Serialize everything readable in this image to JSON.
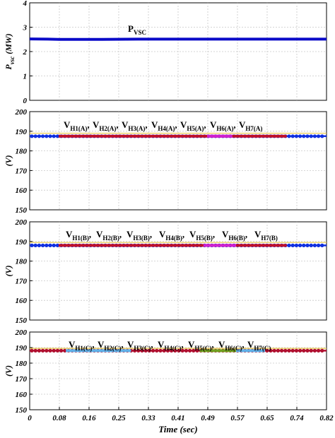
{
  "chart_data": [
    {
      "type": "line",
      "ylabel_main": "P",
      "ylabel_sub": "vsc",
      "ylabel_unit": "(MW)",
      "ylim": [
        0,
        4
      ],
      "yticks": [
        "0",
        "1",
        "2",
        "3",
        "4"
      ],
      "xlim": [
        0,
        0.82
      ],
      "grid": true,
      "annotation": {
        "main": "P",
        "sub": "VSC"
      },
      "series": [
        {
          "color": "#0a0ac8",
          "x": [
            0,
            0.05,
            0.08,
            0.2,
            0.3,
            0.5,
            0.7,
            0.82
          ],
          "y": [
            2.52,
            2.51,
            2.5,
            2.5,
            2.51,
            2.51,
            2.51,
            2.51
          ]
        }
      ]
    },
    {
      "type": "line",
      "ylabel_unit": "(V)",
      "ylim": [
        150,
        200
      ],
      "yticks": [
        "150",
        "160",
        "170",
        "180",
        "190",
        "200"
      ],
      "xlim": [
        0,
        0.82
      ],
      "grid": true,
      "annotation": [
        {
          "main": "V",
          "sub": "H1(A)",
          "sep": ","
        },
        {
          "main": "V",
          "sub": "H2(A)",
          "sep": ","
        },
        {
          "main": "V",
          "sub": "H3(A)",
          "sep": ","
        },
        {
          "main": "V",
          "sub": "H4(A)",
          "sep": ","
        },
        {
          "main": "V",
          "sub": "H5(A)",
          "sep": ","
        },
        {
          "main": "V",
          "sub": "H6(A)",
          "sep": ","
        },
        {
          "main": "V",
          "sub": "H7(A)",
          "sep": ""
        }
      ],
      "reference_line": {
        "y": 189,
        "color": "#e8c84a"
      },
      "series": [
        {
          "color": "#1030e0",
          "marker": "circle",
          "x": [
            0,
            0.82
          ],
          "y": [
            187.5,
            187.5
          ]
        },
        {
          "color": "#c0102a",
          "marker": "none",
          "x": [
            0.08,
            0.71
          ],
          "y": [
            187.5,
            187.5
          ]
        },
        {
          "color": "#d020d0",
          "marker": "none",
          "x": [
            0.49,
            0.56
          ],
          "y": [
            187.5,
            187.5
          ]
        }
      ]
    },
    {
      "type": "line",
      "ylabel_unit": "(V)",
      "ylim": [
        150,
        200
      ],
      "yticks": [
        "150",
        "160",
        "170",
        "180",
        "190",
        "200"
      ],
      "xlim": [
        0,
        0.82
      ],
      "grid": true,
      "annotation": [
        {
          "main": "V",
          "sub": "H1(B)",
          "sep": ","
        },
        {
          "main": "V",
          "sub": "H2(B)",
          "sep": ","
        },
        {
          "main": "V",
          "sub": "H3(B)",
          "sep": ","
        },
        {
          "main": "V",
          "sub": "H4(B)",
          "sep": ","
        },
        {
          "main": "V",
          "sub": "H5(B)",
          "sep": ","
        },
        {
          "main": "V",
          "sub": "H6(B)",
          "sep": ","
        },
        {
          "main": "V",
          "sub": "H7(B)",
          "sep": ""
        }
      ],
      "reference_line": {
        "y": 189.5,
        "color": "#e8c84a"
      },
      "series": [
        {
          "color": "#1030e0",
          "marker": "circle",
          "x": [
            0,
            0.82
          ],
          "y": [
            188,
            188
          ]
        },
        {
          "color": "#c0102a",
          "marker": "none",
          "x": [
            0.08,
            0.71
          ],
          "y": [
            188,
            188
          ]
        },
        {
          "color": "#d020d0",
          "marker": "none",
          "x": [
            0.48,
            0.57
          ],
          "y": [
            188,
            188
          ]
        }
      ]
    },
    {
      "type": "line",
      "ylabel_unit": "(V)",
      "ylim": [
        150,
        200
      ],
      "yticks": [
        "150",
        "160",
        "170",
        "180",
        "190",
        "200"
      ],
      "xlim": [
        0,
        0.82
      ],
      "xticks": [
        "0",
        "0.08",
        "0.16",
        "0.25",
        "0.33",
        "0.41",
        "0.49",
        "0.57",
        "0.65",
        "0.74",
        "0.82"
      ],
      "xlabel": "Time (sec)",
      "grid": true,
      "annotation": [
        {
          "main": "V",
          "sub": "H1(C)",
          "sep": ","
        },
        {
          "main": "V",
          "sub": "H2(C)",
          "sep": ","
        },
        {
          "main": "V",
          "sub": "H3(C)",
          "sep": ","
        },
        {
          "main": "V",
          "sub": "H4(C)",
          "sep": ","
        },
        {
          "main": "V",
          "sub": "H5(C)",
          "sep": ","
        },
        {
          "main": "V",
          "sub": "H6(C)",
          "sep": ","
        },
        {
          "main": "V",
          "sub": "H7(C)",
          "sep": ""
        }
      ],
      "reference_line": {
        "y": 189.5,
        "color": "#e8c84a"
      },
      "series": [
        {
          "color": "#b01030",
          "marker": "circle",
          "x": [
            0,
            0.82
          ],
          "y": [
            188,
            188
          ]
        },
        {
          "color": "#60b0e8",
          "marker": "none",
          "x": [
            0.1,
            0.28
          ],
          "y": [
            188,
            188
          ]
        },
        {
          "color": "#70a020",
          "marker": "none",
          "x": [
            0.47,
            0.57
          ],
          "y": [
            188,
            188
          ]
        },
        {
          "color": "#60b0e8",
          "marker": "none",
          "x": [
            0.57,
            0.65
          ],
          "y": [
            188,
            188
          ]
        }
      ]
    }
  ]
}
